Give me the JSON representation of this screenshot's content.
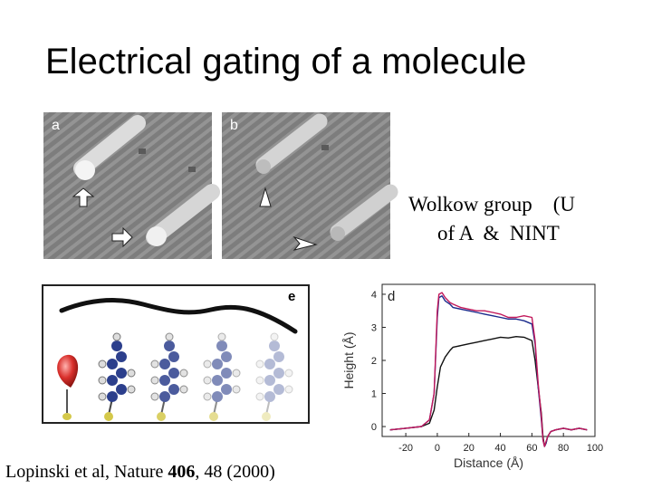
{
  "slide": {
    "title": "Electrical gating of a molecule",
    "credit_line1": "Wolkow group    (U",
    "credit_line2": "of A  &  NINT",
    "citation_prefix": "Lopinski et al, Nature ",
    "citation_volume": "406",
    "citation_suffix": ", 48 (2000)"
  },
  "images": {
    "stm_a": {
      "label": "a"
    },
    "stm_b": {
      "label": "b"
    },
    "schematic_e": {
      "label": "e"
    }
  },
  "colors": {
    "trace_black": "#111111",
    "trace_blue": "#1a2a8c",
    "trace_red": "#c2185b",
    "molecule_blue": "#2c3f8c",
    "tip_red": "#d9302c"
  },
  "chart_data": {
    "type": "line",
    "panel_label": "d",
    "xlabel": "Distance (Å)",
    "ylabel": "Height (Å)",
    "xlim": [
      -35,
      100
    ],
    "ylim": [
      -0.3,
      4.3
    ],
    "x_ticks": [
      -20,
      0,
      20,
      40,
      60,
      80,
      100
    ],
    "y_ticks": [
      0,
      1,
      2,
      3,
      4
    ],
    "grid": false,
    "series": [
      {
        "color": "#111111",
        "x": [
          -30,
          -20,
          -10,
          -5,
          -2,
          0,
          2,
          5,
          8,
          10,
          15,
          20,
          25,
          30,
          35,
          40,
          45,
          50,
          55,
          60,
          62,
          64,
          66,
          67,
          68,
          69,
          70,
          72,
          75,
          80,
          85,
          90,
          95
        ],
        "y": [
          -0.1,
          -0.05,
          0,
          0.1,
          0.5,
          1.2,
          1.8,
          2.1,
          2.3,
          2.4,
          2.45,
          2.5,
          2.55,
          2.6,
          2.65,
          2.7,
          2.68,
          2.72,
          2.7,
          2.6,
          2.0,
          1.2,
          0.4,
          -0.3,
          -0.6,
          -0.5,
          -0.3,
          -0.15,
          -0.1,
          -0.05,
          -0.1,
          -0.05,
          -0.1
        ]
      },
      {
        "color": "#1a2a8c",
        "x": [
          -30,
          -20,
          -10,
          -5,
          -2,
          0,
          1,
          3,
          5,
          8,
          10,
          15,
          20,
          25,
          30,
          35,
          40,
          45,
          50,
          55,
          60,
          62,
          64,
          66,
          67,
          68,
          69,
          70,
          72,
          75,
          80,
          85,
          90,
          95
        ],
        "y": [
          -0.1,
          -0.05,
          0,
          0.2,
          1.0,
          3.3,
          3.9,
          3.95,
          3.8,
          3.7,
          3.6,
          3.55,
          3.5,
          3.45,
          3.4,
          3.35,
          3.3,
          3.25,
          3.25,
          3.2,
          3.1,
          2.5,
          1.2,
          0.2,
          -0.4,
          -0.6,
          -0.5,
          -0.3,
          -0.15,
          -0.1,
          -0.05,
          -0.1,
          -0.05,
          -0.1
        ]
      },
      {
        "color": "#c2185b",
        "x": [
          -30,
          -20,
          -10,
          -5,
          -2,
          0,
          1,
          3,
          5,
          8,
          10,
          15,
          20,
          25,
          30,
          35,
          40,
          45,
          50,
          55,
          60,
          62,
          64,
          66,
          67,
          68,
          69,
          70,
          72,
          75,
          80,
          85,
          90,
          95
        ],
        "y": [
          -0.1,
          -0.05,
          0,
          0.2,
          1.0,
          3.5,
          4.0,
          4.05,
          3.9,
          3.75,
          3.7,
          3.6,
          3.55,
          3.5,
          3.5,
          3.45,
          3.4,
          3.3,
          3.3,
          3.35,
          3.3,
          2.6,
          1.3,
          0.3,
          -0.4,
          -0.6,
          -0.45,
          -0.3,
          -0.15,
          -0.1,
          -0.05,
          -0.1,
          -0.05,
          -0.1
        ]
      }
    ]
  }
}
